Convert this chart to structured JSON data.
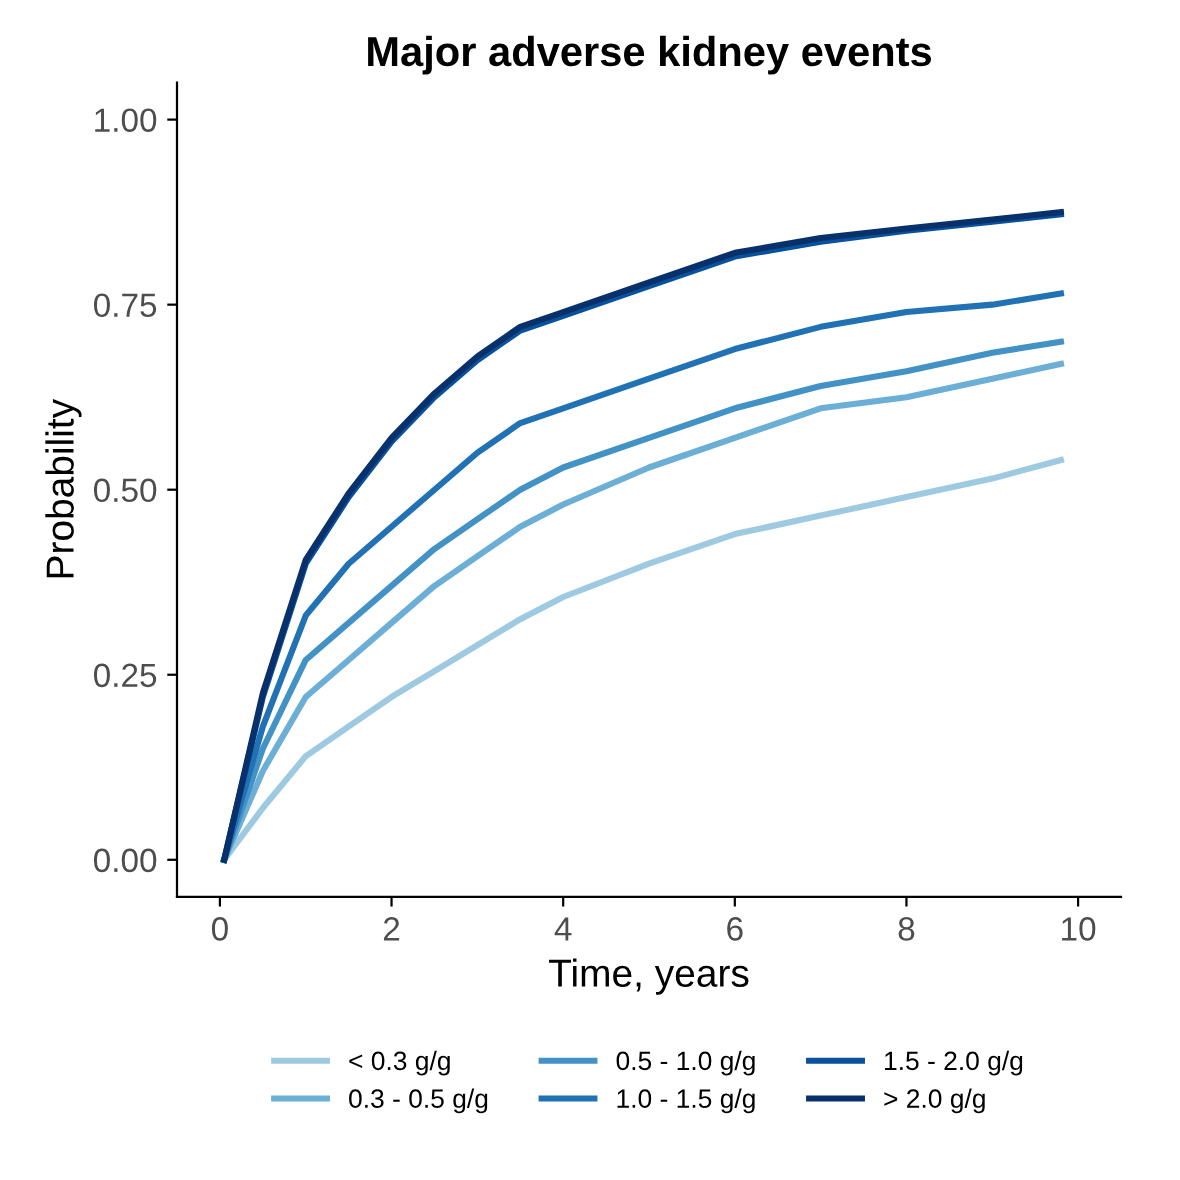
{
  "chart_data": {
    "type": "line",
    "title": "Major adverse kidney events",
    "xlabel": "Time, years",
    "ylabel": "Probability",
    "xlim": [
      -0.5,
      10.5
    ],
    "xticks": [
      0,
      2,
      4,
      6,
      8,
      10
    ],
    "ylim": [
      -0.05,
      1.05
    ],
    "yticks": [
      {
        "value": 0,
        "label": "0.00"
      },
      {
        "value": 0.25,
        "label": "0.25"
      },
      {
        "value": 0.5,
        "label": "0.50"
      },
      {
        "value": 0.75,
        "label": "0.75"
      },
      {
        "value": 1,
        "label": "1.00"
      }
    ],
    "grid": false,
    "legend": "bottom",
    "line_style": "solid",
    "marker": "none",
    "x": [
      0.05,
      0.5,
      1,
      1.5,
      2,
      2.5,
      3,
      3.5,
      4,
      5,
      6,
      7,
      8,
      9,
      9.8
    ],
    "series": [
      {
        "name": "< 0.3 g/g",
        "color": "#9ecae1",
        "values": [
          0,
          0.07,
          0.14,
          0.18,
          0.22,
          0.255,
          0.29,
          0.325,
          0.355,
          0.4,
          0.44,
          0.465,
          0.49,
          0.515,
          0.54
        ]
      },
      {
        "name": "0.3 - 0.5 g/g",
        "color": "#6baed6",
        "values": [
          0,
          0.12,
          0.22,
          0.27,
          0.32,
          0.37,
          0.41,
          0.45,
          0.48,
          0.53,
          0.57,
          0.61,
          0.625,
          0.65,
          0.67
        ]
      },
      {
        "name": "0.5 - 1.0 g/g",
        "color": "#4292c6",
        "values": [
          0,
          0.15,
          0.27,
          0.32,
          0.37,
          0.42,
          0.46,
          0.5,
          0.53,
          0.57,
          0.61,
          0.64,
          0.66,
          0.685,
          0.7
        ]
      },
      {
        "name": "1.0 - 1.5 g/g",
        "color": "#2171b5",
        "values": [
          0,
          0.18,
          0.33,
          0.4,
          0.45,
          0.5,
          0.55,
          0.59,
          0.61,
          0.65,
          0.69,
          0.72,
          0.74,
          0.75,
          0.765
        ]
      },
      {
        "name": "1.5 - 2.0 g/g",
        "color": "#08519c",
        "values": [
          0,
          0.22,
          0.4,
          0.49,
          0.565,
          0.625,
          0.675,
          0.715,
          0.735,
          0.775,
          0.815,
          0.835,
          0.85,
          0.862,
          0.872
        ]
      },
      {
        "name": "> 2.0 g/g",
        "color": "#08306b",
        "values": [
          0,
          0.225,
          0.405,
          0.495,
          0.57,
          0.63,
          0.68,
          0.72,
          0.74,
          0.78,
          0.82,
          0.84,
          0.853,
          0.865,
          0.875
        ]
      }
    ]
  }
}
